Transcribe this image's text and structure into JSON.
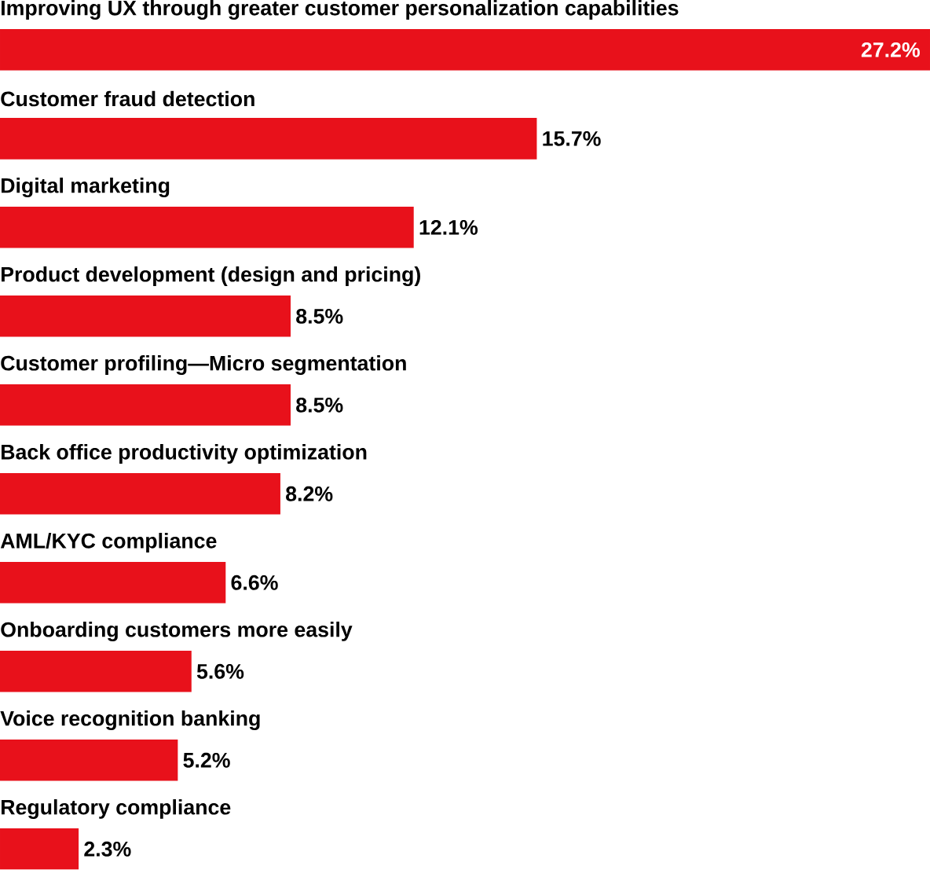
{
  "chart_data": {
    "type": "bar",
    "orientation": "horizontal",
    "color": "#e8111b",
    "categories": [
      "Improving UX through greater customer personalization capabilities",
      "Customer fraud detection",
      "Digital marketing",
      "Product development (design and pricing)",
      "Customer profiling—Micro segmentation",
      "Back office productivity optimization",
      "AML/KYC compliance",
      "Onboarding customers more easily",
      "Voice recognition banking",
      "Regulatory compliance"
    ],
    "values": [
      27.2,
      15.7,
      12.1,
      8.5,
      8.5,
      8.2,
      6.6,
      5.6,
      5.2,
      2.3
    ],
    "value_labels": [
      "27.2%",
      "15.7%",
      "12.1%",
      "8.5%",
      "8.5%",
      "8.2%",
      "6.6%",
      "5.6%",
      "5.2%",
      "2.3%"
    ]
  }
}
